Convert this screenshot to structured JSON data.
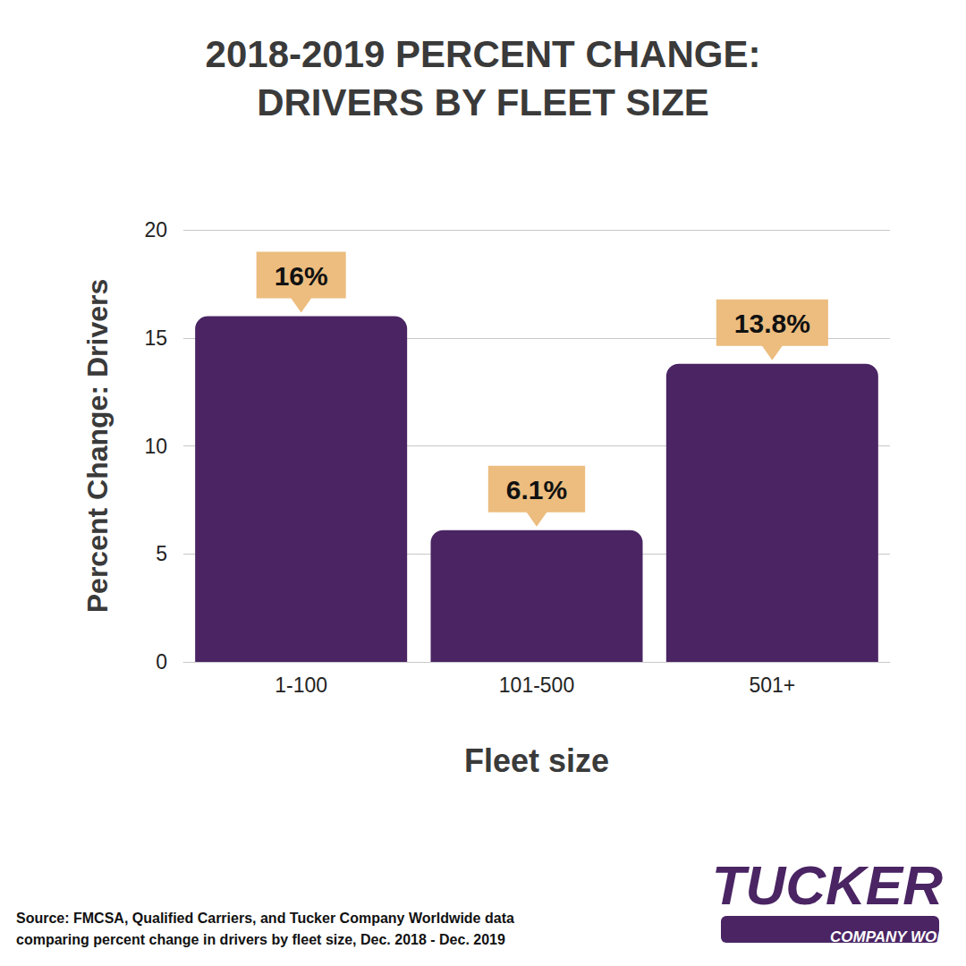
{
  "chart_data": {
    "type": "bar",
    "title": "2018-2019 PERCENT CHANGE:\nDRIVERS BY FLEET SIZE",
    "x_label": "Fleet size",
    "y_label": "Percent Change: Drivers",
    "categories": [
      "1-100",
      "101-500",
      "501+"
    ],
    "values": [
      16,
      6.1,
      13.8
    ],
    "value_labels": [
      "16%",
      "6.1%",
      "13.8%"
    ],
    "color": "#4a2463",
    "ylim": [
      0,
      20
    ],
    "yticks": [
      0,
      5,
      10,
      15,
      20
    ],
    "grid": true,
    "data_labels": true,
    "source": "Source: FMCSA, Qualified Carriers, and Tucker Company Worldwide data\ncomparing percent change in drivers by fleet size, Dec. 2018 - Dec. 2019",
    "logo": [
      "TUCKER",
      "COMPANY WORLDWIDE"
    ]
  }
}
